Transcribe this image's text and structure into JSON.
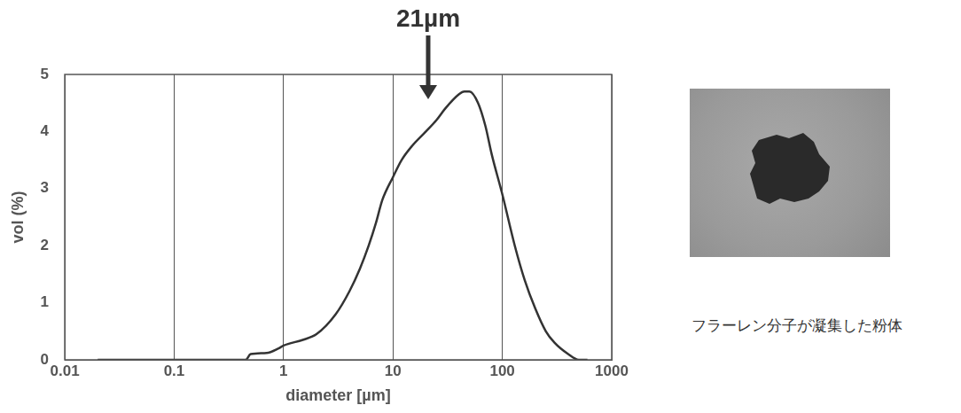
{
  "chart_data": {
    "type": "line",
    "x_label": "diameter [µm]",
    "y_label": "vol (%)",
    "x": [
      0.02,
      0.1,
      0.45,
      0.5,
      0.7,
      0.9,
      1,
      1.5,
      2,
      3,
      4,
      5,
      6,
      7,
      8,
      10,
      12,
      15,
      20,
      25,
      30,
      40,
      45,
      50,
      60,
      70,
      80,
      100,
      130,
      160,
      200,
      250,
      300,
      400,
      500,
      600
    ],
    "values": [
      0,
      0,
      0,
      0.1,
      0.12,
      0.2,
      0.25,
      0.35,
      0.45,
      0.8,
      1.2,
      1.6,
      2.0,
      2.4,
      2.8,
      3.2,
      3.5,
      3.75,
      4.0,
      4.2,
      4.4,
      4.65,
      4.7,
      4.7,
      4.5,
      4.1,
      3.6,
      2.9,
      2.0,
      1.4,
      0.9,
      0.5,
      0.3,
      0.1,
      0,
      0
    ],
    "color": "#333333",
    "xlim": [
      0.01,
      1000
    ],
    "xticks": [
      0.01,
      0.1,
      1,
      10,
      100,
      1000
    ],
    "ylim": [
      0,
      5
    ],
    "yticks": [
      0,
      1,
      2,
      3,
      4,
      5
    ],
    "log": "x",
    "grid": true,
    "annotations": [
      {
        "text": "21µm",
        "x": 21
      }
    ]
  },
  "image_caption": "フラーレン分子が凝集した粉体"
}
